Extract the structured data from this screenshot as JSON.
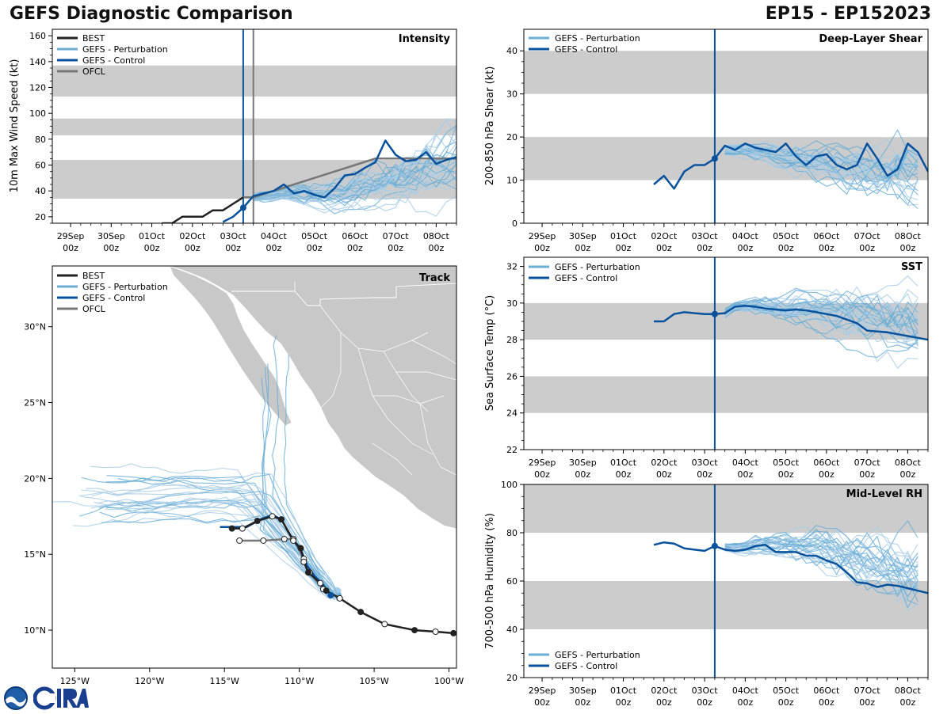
{
  "header": {
    "title": "GEFS Diagnostic Comparison",
    "storm": "EP15 - EP152023"
  },
  "colors": {
    "best": "#222222",
    "perturbation": "#6baed6",
    "perturbation_light": "#a9cde6",
    "control": "#08519c",
    "ofcl": "#777777",
    "band": "#cccccc",
    "land": "#c8c8c8"
  },
  "time_axis": {
    "ticks": [
      {
        "day": 0,
        "label1": "29Sep",
        "label2": "00z"
      },
      {
        "day": 1,
        "label1": "30Sep",
        "label2": "00z"
      },
      {
        "day": 2,
        "label1": "01Oct",
        "label2": "00z"
      },
      {
        "day": 3,
        "label1": "02Oct",
        "label2": "00z"
      },
      {
        "day": 4,
        "label1": "03Oct",
        "label2": "00z"
      },
      {
        "day": 5,
        "label1": "04Oct",
        "label2": "00z"
      },
      {
        "day": 6,
        "label1": "05Oct",
        "label2": "00z"
      },
      {
        "day": 7,
        "label1": "06Oct",
        "label2": "00z"
      },
      {
        "day": 8,
        "label1": "07Oct",
        "label2": "00z"
      },
      {
        "day": 9,
        "label1": "08Oct",
        "label2": "00z"
      }
    ],
    "xlim": [
      -0.45,
      9.5
    ],
    "init_day": 4.25
  },
  "legend_labels": {
    "best": "BEST",
    "perturbation": "GEFS - Perturbation",
    "control": "GEFS - Control",
    "ofcl": "OFCL"
  },
  "chart_data": [
    {
      "id": "intensity",
      "type": "line",
      "title": "Intensity",
      "ylabel": "10m Max Wind Speed (kt)",
      "ylim": [
        15,
        165
      ],
      "yticks": [
        20,
        40,
        60,
        80,
        100,
        120,
        140,
        160
      ],
      "bands": [
        [
          34,
          64
        ],
        [
          83,
          96
        ],
        [
          113,
          137
        ]
      ],
      "ofcl_start_day": 4.5,
      "best": {
        "x": [
          2.25,
          2.5,
          2.75,
          3.0,
          3.25,
          3.5,
          3.75,
          4.0,
          4.25
        ],
        "y": [
          15,
          15,
          20,
          20,
          20,
          25,
          25,
          30,
          35
        ]
      },
      "control": {
        "x": [
          3.75,
          4.0,
          4.25,
          4.5,
          4.75,
          5.0,
          5.25,
          5.5,
          5.75,
          6.0,
          6.25,
          6.5,
          6.75,
          7.0,
          7.25,
          7.5,
          7.75,
          8.0,
          8.25,
          8.5,
          8.75,
          9.0,
          9.25,
          9.5
        ],
        "y": [
          16,
          20,
          27,
          36,
          38,
          40,
          45,
          38,
          40,
          37,
          35,
          42,
          52,
          53,
          58,
          62,
          79,
          68,
          63,
          64,
          70,
          61,
          64,
          66
        ]
      },
      "ofcl": {
        "x": [
          4.25,
          4.5,
          5.0,
          5.5,
          6.0,
          6.5,
          7.0,
          7.5,
          8.0,
          8.5,
          9.5
        ],
        "y": [
          35,
          35,
          40,
          45,
          50,
          55,
          60,
          65,
          65,
          65,
          65
        ]
      },
      "perturbation_base": [
        35,
        36,
        37,
        38,
        38,
        38,
        37,
        37,
        37,
        38,
        40,
        42,
        44,
        46,
        48,
        50,
        52,
        55,
        57,
        59,
        61
      ],
      "perturbation_start": 4.5,
      "perturbation_step": 0.25
    },
    {
      "id": "shear",
      "type": "line",
      "title": "Deep-Layer Shear",
      "ylabel": "200-850 hPa Shear (kt)",
      "ylim": [
        0,
        45
      ],
      "yticks": [
        0,
        10,
        20,
        30,
        40
      ],
      "bands": [
        [
          10,
          20
        ],
        [
          30,
          40
        ]
      ],
      "control": {
        "x": [
          2.75,
          3.0,
          3.25,
          3.5,
          3.75,
          4.0,
          4.25,
          4.5,
          4.75,
          5.0,
          5.25,
          5.5,
          5.75,
          6.0,
          6.25,
          6.5,
          6.75,
          7.0,
          7.25,
          7.5,
          7.75,
          8.0,
          8.25,
          8.5,
          8.75,
          9.0,
          9.25,
          9.5
        ],
        "y": [
          9,
          11,
          8,
          12,
          13.5,
          13.5,
          15,
          18,
          17,
          18.5,
          17.5,
          17,
          16.5,
          18.5,
          15.5,
          13.5,
          15.5,
          16,
          13.5,
          12.5,
          13.5,
          18.5,
          15,
          11,
          12.5,
          18.5,
          16.5,
          12
        ]
      },
      "perturbation_base": [
        17,
        17,
        17,
        17,
        16.5,
        16,
        15.5,
        15,
        14.5,
        14,
        14,
        13.5,
        13,
        13,
        12.5,
        12.5,
        12,
        12,
        12,
        12
      ],
      "perturbation_start": 4.5,
      "perturbation_step": 0.25
    },
    {
      "id": "sst",
      "type": "line",
      "title": "SST",
      "ylabel": "Sea Surface Temp (°C)",
      "ylim": [
        22,
        32.5
      ],
      "yticks": [
        22,
        24,
        26,
        28,
        30,
        32
      ],
      "bands": [
        [
          24,
          26
        ],
        [
          28,
          30
        ]
      ],
      "control": {
        "x": [
          2.75,
          3.0,
          3.25,
          3.5,
          3.75,
          4.0,
          4.25,
          4.5,
          4.75,
          5.0,
          5.25,
          5.5,
          5.75,
          6.0,
          6.25,
          6.5,
          6.75,
          7.0,
          7.25,
          7.5,
          7.75,
          8.0,
          8.25,
          8.5,
          8.75,
          9.0,
          9.25,
          9.5
        ],
        "y": [
          29.0,
          29.0,
          29.4,
          29.5,
          29.45,
          29.4,
          29.4,
          29.45,
          29.8,
          29.85,
          29.8,
          29.7,
          29.65,
          29.6,
          29.65,
          29.6,
          29.5,
          29.4,
          29.3,
          29.1,
          28.9,
          28.5,
          28.45,
          28.4,
          28.3,
          28.2,
          28.1,
          28.0
        ]
      },
      "perturbation_base": [
        29.45,
        29.8,
        29.85,
        29.85,
        29.8,
        29.75,
        29.7,
        29.7,
        29.65,
        29.6,
        29.55,
        29.5,
        29.4,
        29.3,
        29.2,
        29.1,
        29.0,
        28.9,
        28.8,
        28.7
      ],
      "perturbation_start": 4.5,
      "perturbation_step": 0.25
    },
    {
      "id": "rh",
      "type": "line",
      "title": "Mid-Level RH",
      "ylabel": "700-500 hPa Humidity (%)",
      "ylim": [
        20,
        100
      ],
      "yticks": [
        20,
        40,
        60,
        80,
        100
      ],
      "bands": [
        [
          40,
          60
        ],
        [
          80,
          100
        ]
      ],
      "legend_position": "bottom-left",
      "control": {
        "x": [
          2.75,
          3.0,
          3.25,
          3.5,
          3.75,
          4.0,
          4.25,
          4.5,
          4.75,
          5.0,
          5.25,
          5.5,
          5.75,
          6.0,
          6.25,
          6.5,
          6.75,
          7.0,
          7.25,
          7.5,
          7.75,
          8.0,
          8.25,
          8.5,
          8.75,
          9.0,
          9.25,
          9.5
        ],
        "y": [
          75,
          76,
          75.5,
          73.5,
          73,
          72.5,
          74.5,
          73,
          72.5,
          73,
          74.5,
          75,
          72,
          72,
          72,
          70.5,
          70.5,
          68.5,
          67,
          63.5,
          59.5,
          59,
          57.5,
          58.5,
          58,
          57,
          56,
          55
        ]
      },
      "perturbation_base": [
        74,
        73.5,
        73.5,
        74,
        74.5,
        75,
        75,
        74.5,
        74,
        73.5,
        73,
        72,
        71,
        70,
        68.5,
        67,
        65.5,
        64.5,
        63.5,
        62.5
      ],
      "perturbation_start": 4.5,
      "perturbation_step": 0.25
    },
    {
      "id": "track",
      "type": "scatter",
      "title": "Track",
      "lon_range": [
        -126.5,
        -99.5
      ],
      "lat_range": [
        7.5,
        34
      ],
      "lon_ticks": [
        {
          "value": -125,
          "label": "125°W"
        },
        {
          "value": -120,
          "label": "120°W"
        },
        {
          "value": -115,
          "label": "115°W"
        },
        {
          "value": -110,
          "label": "110°W"
        },
        {
          "value": -105,
          "label": "105°W"
        },
        {
          "value": -100,
          "label": "100°W"
        }
      ],
      "lat_ticks": [
        {
          "value": 10,
          "label": "10°N"
        },
        {
          "value": 15,
          "label": "15°N"
        },
        {
          "value": 20,
          "label": "20°N"
        },
        {
          "value": 25,
          "label": "25°N"
        },
        {
          "value": 30,
          "label": "30°N"
        }
      ],
      "best": [
        [
          -99.7,
          9.8
        ],
        [
          -100.9,
          9.9
        ],
        [
          -102.3,
          10.0
        ],
        [
          -104.3,
          10.4
        ],
        [
          -105.9,
          11.2
        ],
        [
          -107.3,
          12.1
        ],
        [
          -108.2,
          12.6
        ],
        [
          -108.6,
          13.1
        ],
        [
          -109.4,
          13.8
        ],
        [
          -109.7,
          14.5
        ],
        [
          -109.9,
          15.4
        ],
        [
          -110.4,
          15.9
        ],
        [
          -111.2,
          17.3
        ],
        [
          -111.8,
          17.5
        ],
        [
          -112.8,
          17.2
        ],
        [
          -113.8,
          16.7
        ],
        [
          -114.5,
          16.7
        ]
      ],
      "control": [
        [
          -107.9,
          12.3
        ],
        [
          -108.4,
          13.0
        ],
        [
          -109.0,
          13.6
        ],
        [
          -109.5,
          14.3
        ],
        [
          -109.8,
          15.1
        ],
        [
          -110.3,
          15.8
        ],
        [
          -110.8,
          16.6
        ],
        [
          -111.2,
          17.3
        ],
        [
          -111.8,
          17.6
        ],
        [
          -112.6,
          17.3
        ],
        [
          -113.5,
          16.8
        ],
        [
          -114.3,
          16.8
        ],
        [
          -115.3,
          16.8
        ]
      ],
      "ofcl": [
        [
          -107.3,
          12.1
        ],
        [
          -108.4,
          12.7
        ],
        [
          -109.3,
          13.8
        ],
        [
          -109.7,
          14.7
        ],
        [
          -110.4,
          16.0
        ],
        [
          -111.0,
          16.0
        ],
        [
          -112.4,
          15.9
        ],
        [
          -114.0,
          15.9
        ]
      ],
      "ensemble_start": [
        -107.8,
        12.3
      ]
    }
  ]
}
